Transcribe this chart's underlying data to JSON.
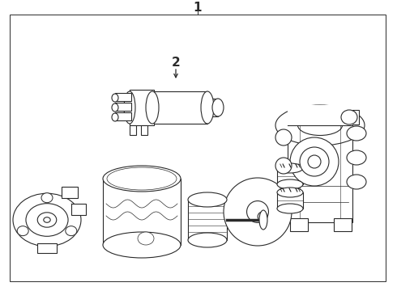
{
  "bg_color": "#ffffff",
  "line_color": "#2a2a2a",
  "lw": 0.8,
  "fig_w": 4.9,
  "fig_h": 3.6,
  "dpi": 100,
  "label1": "1",
  "label2": "2"
}
